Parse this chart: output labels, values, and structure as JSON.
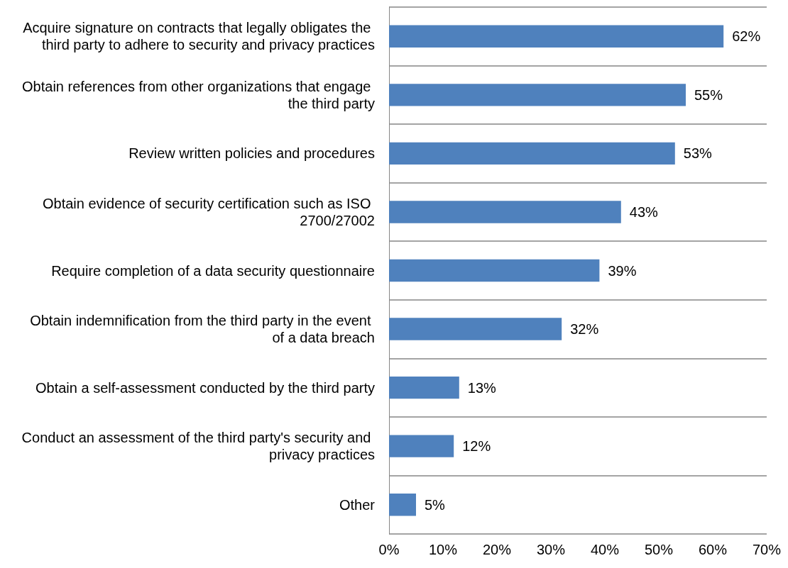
{
  "chart_data": {
    "type": "bar",
    "orientation": "horizontal",
    "categories": [
      "Acquire signature on contracts that legally obligates the third party to adhere to security and privacy practices",
      "Obtain references from other organizations that engage the third party",
      "Review written policies and procedures",
      "Obtain evidence of security certification such as ISO 2700/27002",
      "Require completion of a data security questionnaire",
      "Obtain indemnification from the third party in the event of a data breach",
      "Obtain a self-assessment conducted by the third party",
      "Conduct an assessment of the third party's security and privacy practices",
      "Other"
    ],
    "values": [
      62,
      55,
      53,
      43,
      39,
      32,
      13,
      12,
      5
    ],
    "value_labels": [
      "62%",
      "55%",
      "53%",
      "43%",
      "39%",
      "32%",
      "13%",
      "12%",
      "5%"
    ],
    "color": "#4f81bd",
    "xlim": [
      0,
      70
    ],
    "xticks": [
      {
        "value": 0,
        "label": "0%"
      },
      {
        "value": 10,
        "label": "10%"
      },
      {
        "value": 20,
        "label": "20%"
      },
      {
        "value": 30,
        "label": "30%"
      },
      {
        "value": 40,
        "label": "40%"
      },
      {
        "value": 50,
        "label": "50%"
      },
      {
        "value": 60,
        "label": "60%"
      },
      {
        "value": 70,
        "label": "70%"
      }
    ],
    "grid": "y"
  }
}
